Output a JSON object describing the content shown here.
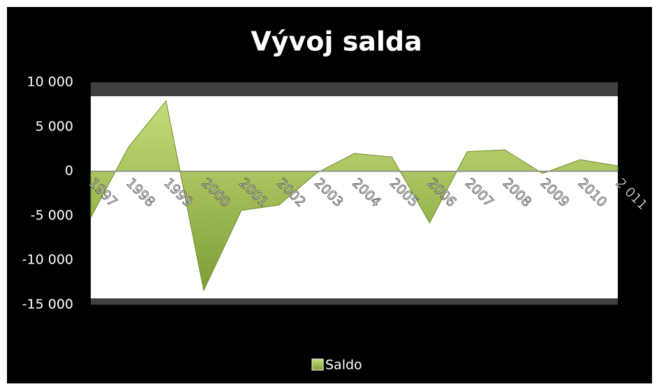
{
  "chart_data": {
    "type": "area",
    "title": "Vývoj salda",
    "categories": [
      "1997",
      "1998",
      "1999",
      "2000",
      "2001",
      "2002",
      "2003",
      "2004",
      "2005",
      "2006",
      "2007",
      "2008",
      "2009",
      "2010",
      "2 011"
    ],
    "series": [
      {
        "name": "Saldo",
        "color": "#9bbb59",
        "values": [
          -5200,
          2700,
          7900,
          -13400,
          -4400,
          -3800,
          -200,
          2000,
          1600,
          -5800,
          2200,
          2400,
          -250,
          1300,
          600
        ]
      }
    ],
    "ylim": [
      -15000,
      10000
    ],
    "yticks": [
      {
        "value": 10000,
        "label": "10 000"
      },
      {
        "value": 5000,
        "label": "5 000"
      },
      0,
      {
        "value": -5000,
        "label": "-5 000"
      },
      {
        "value": -10000,
        "label": "-10 000"
      },
      {
        "value": -15000,
        "label": "-15 000"
      }
    ],
    "legend": "bottom"
  }
}
